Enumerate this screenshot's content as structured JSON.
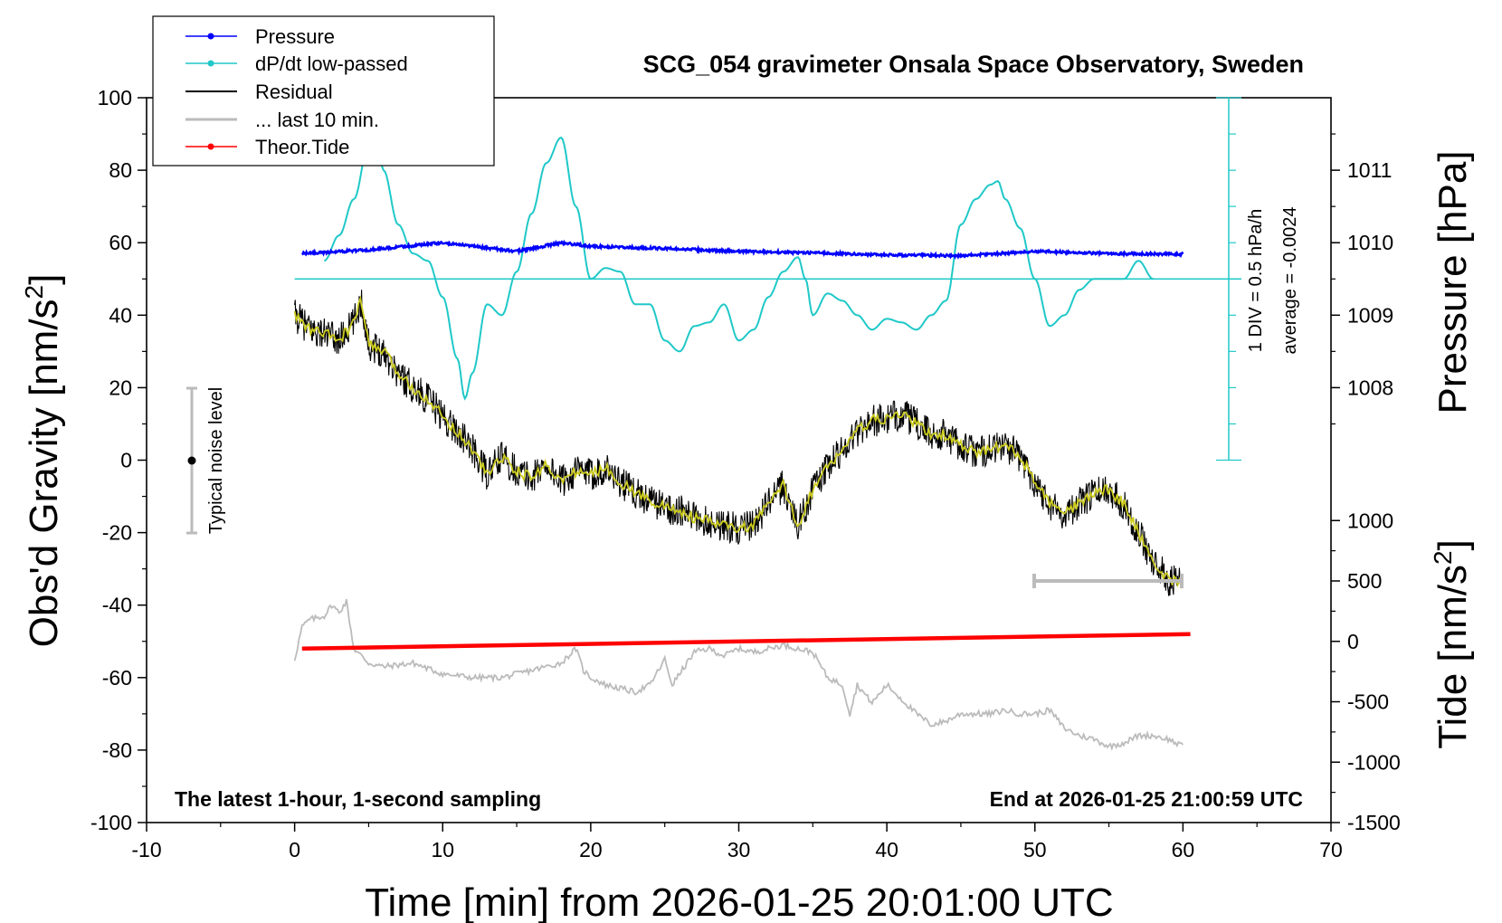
{
  "chart_data": {
    "type": "line",
    "title": "SCG_054 gravimeter Onsala Space Observatory, Sweden",
    "xlabel": "Time [min] from 2026-01-25 20:01:00 UTC",
    "ylabel_left": "Obs'd Gravity [nm/s",
    "ylabel_left_sup": "2",
    "ylabel_left_close": "]",
    "ylabel_right_pressure": "Pressure [hPa]",
    "ylabel_right_tide": "Tide [nm/s",
    "ylabel_right_tide_sup": "2",
    "ylabel_right_tide_close": "]",
    "xlim": [
      -10,
      70
    ],
    "ylim_left": [
      -100,
      100
    ],
    "x_ticks": [
      "-10",
      "0",
      "10",
      "20",
      "30",
      "40",
      "50",
      "60",
      "70"
    ],
    "y_ticks_left": [
      "100",
      "80",
      "60",
      "40",
      "20",
      "0",
      "-20",
      "-40",
      "-60",
      "-80",
      "-100"
    ],
    "pressure_ticks": [
      "1011",
      "1010",
      "1009",
      "1008"
    ],
    "tide_ticks": [
      "1000",
      "500",
      "0",
      "-500",
      "-1000",
      "-1500"
    ],
    "note_left": "The latest 1-hour, 1-second sampling",
    "note_right": "End at 2026-01-25 21:00:59 UTC",
    "noise_label": "Typical noise level",
    "div_label": "1 DIV = 0.5 hPa/h",
    "average_label": "average = -0.0024",
    "legend": [
      {
        "label": "Pressure",
        "color": "#0000ff"
      },
      {
        "label": "dP/dt low-passed",
        "color": "#20c8c8"
      },
      {
        "label": "Residual",
        "color": "#000000"
      },
      {
        "label": "... last 10 min.",
        "color": "#bbbbbb"
      },
      {
        "label": "Theor.Tide",
        "color": "#ff0000"
      }
    ],
    "series": {
      "pressure_hpa": {
        "x": [
          0.5,
          5,
          10,
          15,
          18,
          20,
          25,
          30,
          35,
          40,
          45,
          50,
          55,
          60
        ],
        "values": [
          1009.85,
          1009.9,
          1010.0,
          1009.88,
          1010.0,
          1009.95,
          1009.92,
          1009.88,
          1009.86,
          1009.83,
          1009.82,
          1009.88,
          1009.85,
          1009.84
        ]
      },
      "dpdt_display_nm": {
        "x": [
          2,
          3,
          4,
          5,
          5.5,
          6,
          7,
          8,
          9,
          10,
          11,
          11.5,
          12,
          13,
          14,
          15,
          16,
          17,
          18,
          19,
          20,
          21,
          22,
          23,
          24,
          25,
          26,
          27,
          28,
          29,
          30,
          31,
          32,
          33,
          34,
          34.5,
          35,
          36,
          37,
          38,
          39,
          40,
          41,
          42,
          43,
          44,
          45,
          46,
          47,
          47.5,
          48,
          49,
          50,
          51,
          52,
          53,
          54,
          55,
          56,
          57,
          58
        ],
        "values": [
          55,
          62,
          72,
          87,
          91,
          80,
          65,
          57,
          55,
          45,
          28,
          17,
          24,
          43,
          40,
          52,
          68,
          82,
          89,
          70,
          50,
          53,
          52,
          43,
          43,
          33,
          30,
          37,
          38,
          43,
          33,
          36,
          45,
          52,
          56,
          50,
          40,
          46,
          44,
          40,
          36,
          39,
          38,
          36,
          40,
          44,
          65,
          72,
          76,
          77,
          72,
          64,
          50,
          37,
          40,
          47,
          50,
          50,
          50,
          55,
          50
        ]
      },
      "residual_nm": {
        "x": [
          0,
          1,
          2,
          3,
          4,
          4.5,
          5,
          6,
          7,
          8,
          9,
          10,
          11,
          12,
          13,
          14,
          15,
          16,
          17,
          18,
          19,
          20,
          21,
          22,
          23,
          24,
          25,
          26,
          27,
          28,
          29,
          30,
          31,
          32,
          33,
          34,
          35,
          36,
          37,
          38,
          39,
          40,
          41,
          42,
          43,
          44,
          45,
          46,
          47,
          48,
          49,
          50,
          51,
          52,
          53,
          54,
          55,
          56,
          57,
          58,
          59,
          60
        ],
        "values": [
          40,
          36,
          35,
          33,
          38,
          44,
          32,
          30,
          24,
          20,
          17,
          12,
          8,
          3,
          -4,
          1,
          -3,
          -5,
          -1,
          -6,
          -3,
          -4,
          -2,
          -6,
          -9,
          -11,
          -13,
          -14,
          -16,
          -17,
          -18,
          -19,
          -18,
          -12,
          -7,
          -18,
          -8,
          -2,
          3,
          8,
          11,
          11,
          13,
          10,
          7,
          7,
          4,
          2,
          3,
          4,
          1,
          -6,
          -12,
          -15,
          -12,
          -9,
          -8,
          -12,
          -20,
          -28,
          -33,
          -34
        ]
      },
      "last10_nm": {
        "x": [
          0,
          0.5,
          1,
          2,
          2.5,
          3,
          3.5,
          4,
          5,
          6,
          8,
          10,
          12,
          14,
          16,
          18,
          19,
          19.5,
          20,
          21,
          22,
          23,
          24,
          25,
          25.5,
          26,
          27,
          28,
          29,
          30,
          31,
          32,
          33,
          34,
          35,
          36,
          37,
          37.5,
          38,
          39,
          40,
          41,
          42,
          43,
          44,
          45,
          46,
          47,
          48,
          49,
          50,
          51,
          52,
          53,
          54,
          55,
          56,
          57,
          58,
          59,
          59.5,
          60
        ],
        "values": [
          -55,
          -46,
          -44,
          -43,
          -40,
          -42,
          -39,
          -52,
          -56,
          -57,
          -56,
          -59,
          -60,
          -60,
          -58,
          -56,
          -52,
          -58,
          -60,
          -62,
          -63,
          -64,
          -62,
          -55,
          -62,
          -59,
          -53,
          -52,
          -54,
          -52,
          -53,
          -52,
          -51,
          -52,
          -53,
          -60,
          -62,
          -70,
          -62,
          -67,
          -62,
          -66,
          -70,
          -73,
          -72,
          -70,
          -70,
          -70,
          -69,
          -70,
          -70,
          -69,
          -74,
          -76,
          -77,
          -79,
          -78,
          -76,
          -76,
          -77,
          -78,
          -79
        ]
      },
      "tide_nms2": {
        "x": [
          0.5,
          60.5
        ],
        "values": [
          -60,
          60
        ]
      }
    }
  }
}
